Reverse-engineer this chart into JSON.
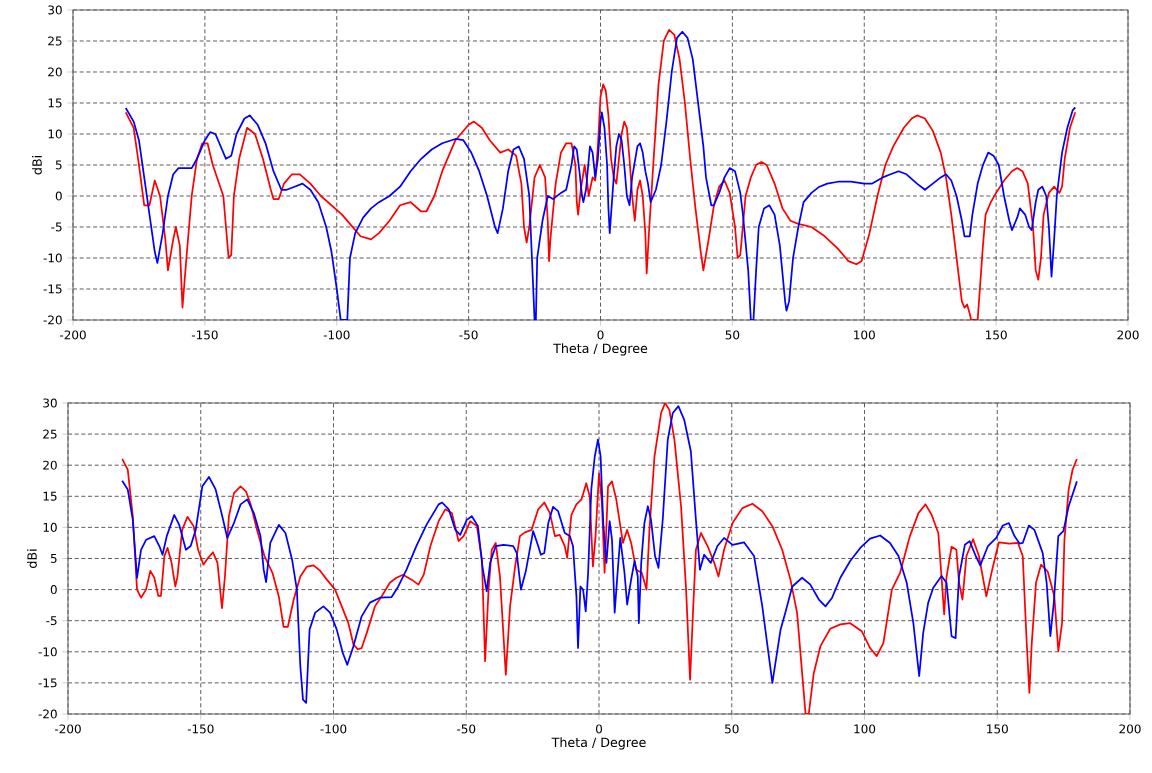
{
  "chart_data": [
    {
      "type": "line",
      "xlabel": "Theta / Degree",
      "ylabel": "dBi",
      "xlim": [
        -200,
        200
      ],
      "ylim": [
        -20,
        30
      ],
      "xticks": [
        -200,
        -150,
        -100,
        -50,
        0,
        50,
        100,
        150,
        200
      ],
      "yticks": [
        -20,
        -15,
        -10,
        -5,
        0,
        5,
        10,
        15,
        20,
        25,
        30
      ],
      "grid": true,
      "marker": "none",
      "line_style": "solid",
      "series": [
        {
          "color": "#ff0000",
          "x": [
            -180,
            -177,
            -175,
            -173,
            -171,
            -169,
            -167,
            -165,
            -164,
            -162,
            -161,
            -159.5,
            -158.5,
            -157,
            -155,
            -153,
            -151,
            -149,
            -147,
            -145,
            -143,
            -142,
            -141,
            -140,
            -139,
            -137,
            -134,
            -131,
            -128,
            -125,
            -124,
            -122,
            -120,
            -117,
            -114,
            -110,
            -106,
            -102,
            -98,
            -95,
            -91,
            -87,
            -84,
            -80,
            -76,
            -72,
            -68,
            -66,
            -63,
            -60,
            -55,
            -50,
            -48,
            -45,
            -42,
            -38,
            -35,
            -32,
            -30,
            -29,
            -28,
            -27,
            -25,
            -23,
            -21,
            -20,
            -19.5,
            -19,
            -17,
            -15,
            -13,
            -11,
            -9.5,
            -9,
            -8.5,
            -7.5,
            -6,
            -5,
            -4.5,
            -3,
            -2,
            -1,
            0,
            1,
            2,
            3,
            4,
            5,
            6,
            7,
            8,
            9,
            10,
            11,
            12,
            13,
            14,
            15,
            16,
            17,
            17.5,
            18.5,
            20,
            22,
            24,
            26,
            28,
            30,
            32,
            34,
            36,
            38,
            39,
            41,
            43,
            45,
            47,
            49,
            51,
            52,
            53,
            55,
            57,
            59,
            61,
            63,
            66,
            69,
            72,
            75,
            80,
            85,
            90,
            94,
            97,
            99,
            102,
            105,
            108,
            111,
            115,
            118,
            120,
            123,
            126,
            129,
            131,
            133,
            135,
            137,
            138,
            139,
            140,
            140.5,
            143,
            145,
            146,
            148,
            150,
            153,
            156,
            158,
            160,
            162,
            164,
            165,
            166,
            167,
            168,
            170,
            172,
            174,
            175,
            176,
            178,
            180
          ],
          "values": [
            13.5,
            11,
            5,
            -1.5,
            -1.5,
            2.5,
            0,
            -7,
            -12,
            -7,
            -5,
            -8,
            -18,
            -10,
            0,
            6,
            8.5,
            8.5,
            5,
            2.5,
            0,
            -5,
            -10,
            -9.5,
            0,
            6,
            11,
            10,
            6,
            1,
            -0.5,
            -0.5,
            2,
            3.5,
            3.5,
            2,
            0,
            -1.5,
            -3,
            -4.5,
            -6.5,
            -7,
            -6,
            -4,
            -1.5,
            -1,
            -2.5,
            -2.5,
            0,
            4,
            9,
            11.5,
            12,
            11,
            9,
            7,
            7.5,
            6.5,
            2,
            -5,
            -7.5,
            -5,
            3,
            5,
            3,
            -4,
            -10.5,
            -7,
            2,
            7,
            8.5,
            8.5,
            5,
            -1,
            -3,
            1,
            5,
            2,
            0,
            3,
            2.5,
            8,
            16,
            18,
            17,
            13,
            6,
            3,
            2,
            6,
            10,
            12,
            11,
            6,
            0,
            -4,
            1,
            2.5,
            0,
            -6,
            -12.5,
            -5,
            5,
            18,
            25,
            26.8,
            26,
            22,
            15,
            6,
            -2,
            -9,
            -12,
            -7,
            -1.5,
            1.5,
            2.5,
            0.5,
            -5,
            -10,
            -9.5,
            0,
            3,
            5,
            5.5,
            5,
            2,
            -2,
            -4,
            -4.5,
            -5,
            -6.5,
            -8.5,
            -10.5,
            -11,
            -10.5,
            -6,
            0,
            5,
            8,
            11,
            12.5,
            13,
            12.5,
            10.5,
            7,
            3,
            -3,
            -10,
            -17,
            -18,
            -17.5,
            -19,
            -20,
            -20,
            -8,
            -3,
            -1,
            0.5,
            2.5,
            4,
            4.5,
            4,
            2,
            -5,
            -12,
            -13.5,
            -10,
            -3,
            0.5,
            1.5,
            0.5,
            1.5,
            6,
            11,
            13.5
          ]
        },
        {
          "color": "#0000ff",
          "x": [
            -180,
            -177,
            -175,
            -173,
            -171,
            -169,
            -168,
            -166,
            -164,
            -162,
            -160,
            -157,
            -155,
            -153,
            -150,
            -148,
            -146,
            -144,
            -142,
            -140,
            -138,
            -135,
            -133,
            -130,
            -127,
            -124,
            -121,
            -119,
            -116,
            -113,
            -110,
            -107,
            -104,
            -102,
            -100,
            -98.5,
            -96,
            -95,
            -93,
            -90,
            -87,
            -84,
            -80,
            -76,
            -72,
            -68,
            -64,
            -60,
            -55,
            -52,
            -49,
            -46,
            -43,
            -40,
            -39,
            -37,
            -35,
            -33,
            -31,
            -29,
            -27,
            -26,
            -25,
            -24.5,
            -24,
            -22,
            -20,
            -18,
            -15,
            -13,
            -11,
            -10,
            -9,
            -8,
            -7,
            -6.5,
            -5.5,
            -4,
            -3,
            -2,
            -1,
            0,
            0.5,
            1.5,
            2.5,
            3,
            3.5,
            4,
            5,
            6,
            7,
            8,
            9,
            10,
            11,
            12,
            14,
            15,
            16,
            17,
            18,
            19,
            20,
            21,
            22,
            23,
            25,
            27,
            29,
            31,
            33,
            35,
            37,
            39,
            40,
            42,
            43,
            45,
            47,
            49,
            51,
            53,
            54,
            56,
            57,
            58,
            59,
            60,
            62,
            64,
            66,
            68,
            70,
            70.5,
            71.5,
            73,
            75,
            77,
            80,
            83,
            86,
            90,
            95,
            100,
            103,
            107,
            110,
            113,
            116,
            120,
            123,
            126,
            129,
            131,
            133,
            135,
            137,
            138,
            140,
            141,
            143,
            145,
            147,
            149,
            151,
            153,
            155,
            156,
            158,
            159,
            161,
            162.5,
            163.5,
            165,
            166,
            167.5,
            169,
            170,
            171,
            172,
            173,
            175,
            177,
            179,
            180
          ],
          "values": [
            14.2,
            12,
            9,
            3,
            -3,
            -9,
            -10.8,
            -6,
            0,
            3.5,
            4.5,
            4.5,
            4.5,
            6,
            9,
            10.3,
            10,
            8,
            6,
            6.5,
            10,
            12.5,
            13,
            11.5,
            8.5,
            4,
            1,
            1,
            1.5,
            2,
            1,
            -1,
            -5,
            -9,
            -15,
            -20,
            -20,
            -10,
            -6,
            -3.5,
            -2,
            -1,
            0,
            1.5,
            4,
            6,
            7.5,
            8.5,
            9.2,
            9,
            7,
            4,
            0,
            -5,
            -6,
            -2,
            4,
            7.5,
            8,
            6,
            0,
            -10,
            -20,
            -20,
            -10,
            -4,
            0,
            -0.5,
            0.5,
            1,
            5,
            8,
            7.5,
            4,
            0,
            -1,
            1,
            8,
            7,
            3,
            6,
            12,
            13.5,
            11,
            5,
            -2,
            -6,
            -3,
            3,
            8,
            10,
            9,
            5,
            0,
            -1.5,
            3,
            8,
            8.5,
            7,
            4,
            2,
            -1,
            0,
            1,
            3,
            5,
            12,
            20,
            25.5,
            26.5,
            25.5,
            22,
            15,
            8,
            3,
            -1.5,
            -1.5,
            0.5,
            3,
            4.5,
            4,
            0.5,
            -3,
            -12,
            -20,
            -20,
            -12,
            -5,
            -2,
            -1.5,
            -3,
            -8,
            -17,
            -18.5,
            -17,
            -10,
            -5,
            -1,
            0.5,
            1.5,
            2,
            2.3,
            2.3,
            2,
            2,
            3,
            3.5,
            4,
            3.5,
            2,
            1,
            2,
            3,
            3.5,
            2.5,
            0,
            -4,
            -6.5,
            -6.5,
            -3,
            2,
            5,
            7,
            6.5,
            5,
            0,
            -4,
            -5.5,
            -3.5,
            -2,
            -3,
            -5,
            -5.5,
            -1,
            1,
            1.5,
            0,
            -5,
            -13,
            -7,
            0,
            7,
            11,
            13.8,
            14.3
          ]
        }
      ]
    },
    {
      "type": "line",
      "xlabel": "Theta / Degree",
      "ylabel": "dBi",
      "xlim": [
        -200,
        200
      ],
      "ylim": [
        -20,
        30
      ],
      "xticks": [
        -200,
        -150,
        -100,
        -50,
        0,
        50,
        100,
        150,
        200
      ],
      "yticks": [
        -20,
        -15,
        -10,
        -5,
        0,
        5,
        10,
        15,
        20,
        25,
        30
      ],
      "grid": true,
      "marker": "none",
      "line_style": "solid",
      "series": [
        {
          "color": "#ff0000",
          "x": [
            -179.6,
            -177.5,
            -175.6,
            -174,
            -172.5,
            -170.6,
            -169,
            -167.5,
            -166,
            -165,
            -163.7,
            -162.5,
            -161,
            -159.6,
            -158.8,
            -157,
            -155,
            -152.7,
            -151,
            -149,
            -147.2,
            -145.4,
            -143.7,
            -142,
            -140.9,
            -139.4,
            -137.5,
            -135,
            -133,
            -131.2,
            -128.7,
            -126,
            -123,
            -120.6,
            -118.8,
            -117.2,
            -115,
            -112.5,
            -110,
            -107.5,
            -105,
            -102.5,
            -99.4,
            -96.9,
            -94.4,
            -92.5,
            -90.9,
            -89.4,
            -87.5,
            -84.4,
            -81.9,
            -78.8,
            -76.3,
            -73.8,
            -70.6,
            -68,
            -66,
            -63.5,
            -60.4,
            -57.9,
            -55.4,
            -52.9,
            -51,
            -48.5,
            -46,
            -44.1,
            -42.9,
            -41.6,
            -40.4,
            -38.9,
            -37.3,
            -35.1,
            -33.5,
            -31.6,
            -29.8,
            -27.9,
            -25.4,
            -22.9,
            -20.6,
            -18.5,
            -16.6,
            -14.8,
            -12.9,
            -12,
            -10.4,
            -8.5,
            -6.6,
            -4.8,
            -3.5,
            -2.3,
            -1.3,
            0,
            1.1,
            2.1,
            3.4,
            4.9,
            6.5,
            9,
            10.6,
            12.1,
            14,
            16.1,
            17.9,
            19,
            20.9,
            23.4,
            24.9,
            26.5,
            28.4,
            30.9,
            32.8,
            34.3,
            35.5,
            36.5,
            38.4,
            40.9,
            43.4,
            45,
            47.1,
            50.3,
            54,
            57.8,
            61.5,
            65.3,
            69,
            72.1,
            74.6,
            76.5,
            77.8,
            79,
            80.9,
            83.4,
            87.1,
            90.9,
            94.6,
            99,
            102.1,
            104.6,
            107.1,
            110.3,
            113.4,
            117.1,
            120.3,
            123,
            125.3,
            127.8,
            129,
            130,
            130.9,
            132.8,
            134.6,
            135.6,
            136.9,
            138.4,
            140.9,
            143.1,
            145.9,
            148.1,
            150.6,
            154.6,
            157.8,
            159.6,
            161.1,
            162.1,
            163,
            164.6,
            166.5,
            169,
            171.5,
            173,
            174.4,
            175.3,
            176.9,
            178.4,
            180
          ],
          "values": [
            21,
            19.3,
            11.8,
            0,
            -1.3,
            0,
            3,
            1.9,
            -1,
            -1,
            5.4,
            6.7,
            4.3,
            0.5,
            2,
            9.6,
            11.7,
            10.2,
            6.4,
            4,
            5.1,
            6,
            4.3,
            -3,
            2.1,
            11.8,
            15.5,
            16.6,
            15.8,
            13.7,
            9.4,
            5.4,
            2.7,
            -1.1,
            -6,
            -6,
            -1.6,
            2.1,
            3.7,
            3.9,
            3,
            1.6,
            0,
            -2.7,
            -5.4,
            -8.8,
            -9.6,
            -9.4,
            -7,
            -2.7,
            -1.1,
            1.1,
            1.9,
            2.4,
            1.6,
            0.8,
            2.4,
            7,
            11,
            12.9,
            12.3,
            7.8,
            8.6,
            11,
            10.2,
            4.8,
            -11.5,
            0,
            6.4,
            7.5,
            2.1,
            -13.7,
            -2.7,
            3.7,
            8.6,
            9.2,
            9.6,
            12.9,
            14,
            12.3,
            8.6,
            8.8,
            7,
            5.1,
            12,
            13.7,
            14.5,
            17.1,
            15,
            3.7,
            8.6,
            18.7,
            13.9,
            2.7,
            16.6,
            17.4,
            14.5,
            7.5,
            9.6,
            7.5,
            3.2,
            2.7,
            0,
            9.6,
            21.4,
            28.4,
            30,
            28.9,
            24.1,
            13.4,
            0,
            -14.5,
            -2.7,
            6.4,
            9.1,
            7,
            4.3,
            2.1,
            6.4,
            10.7,
            13.1,
            13.8,
            12.6,
            10.2,
            6.4,
            1.6,
            -3.7,
            -13.4,
            -20,
            -20,
            -13.4,
            -9.1,
            -6.3,
            -5.6,
            -5.4,
            -6.7,
            -9.4,
            -10.7,
            -8.6,
            0,
            2.7,
            8.6,
            12.3,
            13.7,
            12,
            9.1,
            2.1,
            -4,
            2.1,
            6.9,
            6.4,
            1.1,
            -1.6,
            5.4,
            8.1,
            5.4,
            -1.1,
            3.2,
            7.6,
            7.4,
            7.5,
            5.4,
            -8.6,
            -16.6,
            -8.6,
            1.1,
            4,
            2.9,
            -1.1,
            -9.9,
            -5.4,
            8,
            16.1,
            19.3,
            21
          ]
        },
        {
          "color": "#0000ff",
          "x": [
            -179.6,
            -177.5,
            -175.6,
            -174,
            -172.5,
            -170.6,
            -167.5,
            -165.6,
            -164.4,
            -162.8,
            -160,
            -158.1,
            -155.6,
            -153.8,
            -151.9,
            -149.4,
            -146.9,
            -144.4,
            -141.9,
            -140,
            -137.5,
            -135,
            -132.5,
            -130,
            -127.5,
            -126.3,
            -125.4,
            -123.8,
            -120.6,
            -118.1,
            -115.6,
            -113.8,
            -112.5,
            -111.5,
            -110.3,
            -109,
            -106.9,
            -103.8,
            -101.3,
            -98.8,
            -96.5,
            -94.8,
            -92.5,
            -89.4,
            -86.3,
            -82.5,
            -78.1,
            -75.6,
            -72.5,
            -68.8,
            -65,
            -60.4,
            -59.1,
            -56.6,
            -54.1,
            -52.3,
            -49.8,
            -47.9,
            -45.6,
            -43.9,
            -42.3,
            -41,
            -38.9,
            -36,
            -32.3,
            -31,
            -29.4,
            -27.6,
            -24.8,
            -22.9,
            -21.9,
            -20.6,
            -19.1,
            -17.3,
            -15.4,
            -12.9,
            -11,
            -9.8,
            -8.5,
            -7.9,
            -7,
            -6,
            -5,
            -4.1,
            -2.9,
            -1.6,
            -0.4,
            0.6,
            1.6,
            2.8,
            4,
            4.9,
            5.9,
            6.8,
            8,
            9.6,
            10.6,
            12.1,
            13.4,
            14.6,
            15,
            15.9,
            17.1,
            18.4,
            19.6,
            21.1,
            22.4,
            24,
            25.9,
            27.8,
            29.9,
            32.1,
            34.6,
            36.5,
            38,
            39.6,
            42.1,
            44.6,
            47.1,
            50.3,
            54.6,
            58.4,
            61.5,
            65.3,
            68.4,
            70.2,
            72.8,
            76.5,
            79.6,
            82.8,
            85.3,
            87.8,
            90.9,
            94.6,
            98.4,
            102.1,
            105.9,
            109.6,
            112.8,
            115.9,
            118.4,
            120.6,
            122.1,
            124,
            125.9,
            129,
            130.9,
            132.8,
            134.3,
            135.6,
            137.8,
            139.6,
            141.9,
            143.6,
            146.5,
            149.6,
            152.1,
            154.4,
            156.5,
            158.4,
            159.6,
            161.9,
            164,
            167.1,
            168.6,
            170,
            171.3,
            173,
            174.9,
            176.9,
            180
          ],
          "values": [
            17.5,
            16.1,
            11.2,
            1.9,
            6.4,
            8,
            8.6,
            7,
            5.6,
            8.6,
            12,
            10.4,
            6.4,
            7,
            9.6,
            16.6,
            18.1,
            16.1,
            11.8,
            8.3,
            10.7,
            13.7,
            14.5,
            12.3,
            8.6,
            3.2,
            1.2,
            7.5,
            10.4,
            9.1,
            4.8,
            0,
            -12.3,
            -17.7,
            -18.2,
            -6.4,
            -3.7,
            -2.7,
            -3.7,
            -6.4,
            -10.2,
            -12.1,
            -9.1,
            -4.3,
            -2.1,
            -1.3,
            -1.2,
            0.5,
            3.2,
            7,
            10.4,
            13.7,
            14,
            12.9,
            9.6,
            8.8,
            11.2,
            11.8,
            10.2,
            3.7,
            -0.3,
            4.3,
            7,
            7.2,
            7,
            5.9,
            0,
            2.9,
            9.4,
            7,
            5.6,
            5.9,
            10.7,
            13.3,
            12.6,
            9.1,
            8.6,
            7,
            -1.1,
            -9.4,
            0.5,
            0,
            -3.5,
            2.7,
            16.1,
            21.4,
            24.1,
            21.4,
            10.7,
            4.3,
            11,
            8,
            -3.7,
            1.6,
            8.3,
            2.7,
            -2.4,
            1.6,
            4.6,
            2.1,
            -5.4,
            4.3,
            10.7,
            13.4,
            11.2,
            5.4,
            3.5,
            11.2,
            24.1,
            28.4,
            29.5,
            27.3,
            22.2,
            11.2,
            3.2,
            5.6,
            4.3,
            7,
            8.3,
            7.2,
            7.6,
            5.4,
            -2.7,
            -15,
            -6.4,
            -3.7,
            0.5,
            1.9,
            0.8,
            -1.6,
            -2.7,
            -1.3,
            1.9,
            4.6,
            6.7,
            8.2,
            8.7,
            7.5,
            5.4,
            1.1,
            -5.4,
            -13.9,
            -7,
            -2.1,
            0.3,
            2.2,
            1.1,
            -7.5,
            -7.8,
            2.1,
            7.2,
            7.8,
            5.4,
            3.9,
            7,
            8.3,
            10.3,
            10.7,
            8.6,
            7.4,
            7.5,
            10.3,
            9.6,
            5.9,
            1.1,
            -7.5,
            -2.1,
            8.6,
            9.4,
            13.4,
            17.4
          ]
        }
      ]
    }
  ]
}
